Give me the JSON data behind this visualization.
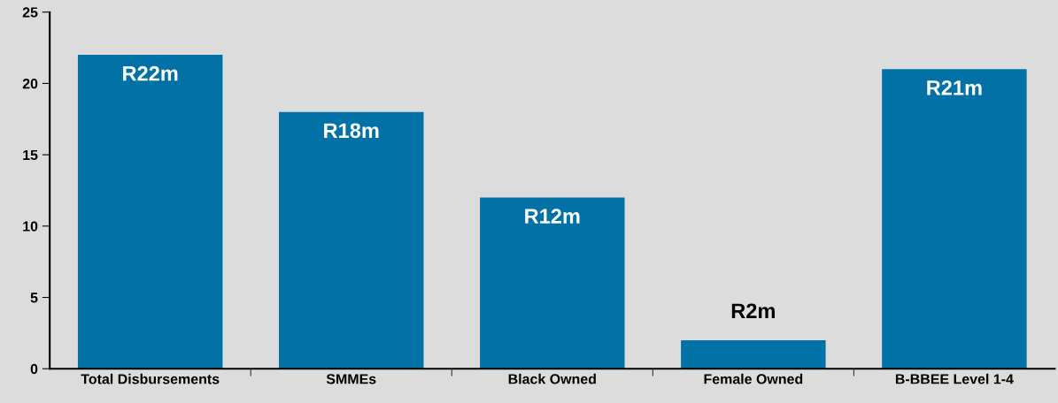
{
  "chart_data": {
    "type": "bar",
    "categories": [
      "Total Disbursements",
      "SMMEs",
      "Black Owned",
      "Female Owned",
      "B-BBEE Level 1-4"
    ],
    "values": [
      22,
      18,
      12,
      2,
      21
    ],
    "value_labels": [
      "R22m",
      "R18m",
      "R12m",
      "R2m",
      "R21m"
    ],
    "color": "#0272a6",
    "ylim": [
      0,
      25
    ],
    "yticks": [
      0,
      5,
      10,
      15,
      20,
      25
    ],
    "grid": false
  }
}
